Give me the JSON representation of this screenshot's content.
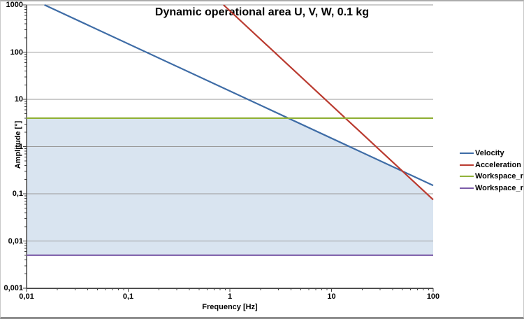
{
  "chart_data": {
    "type": "line",
    "title": "Dynamic operational area U, V, W, 0.1 kg",
    "xlabel": "Frequency [Hz]",
    "ylabel": "Amplitude [°]",
    "x_scale": "log",
    "y_scale": "log",
    "xlim": [
      0.01,
      100
    ],
    "ylim": [
      0.001,
      1000
    ],
    "grid": "horizontal-major",
    "grid_color": "#9A9A9A",
    "axis_color": "#3F3F3F",
    "legend_position": "right",
    "x_ticks": [
      {
        "v": 0.01,
        "label": "0,01"
      },
      {
        "v": 0.1,
        "label": "0,1"
      },
      {
        "v": 1,
        "label": "1"
      },
      {
        "v": 10,
        "label": "10"
      },
      {
        "v": 100,
        "label": "100"
      }
    ],
    "y_ticks": [
      {
        "v": 1000,
        "label": "1000"
      },
      {
        "v": 100,
        "label": "100"
      },
      {
        "v": 10,
        "label": "10"
      },
      {
        "v": 1,
        "label": "1"
      },
      {
        "v": 0.1,
        "label": "0,1"
      },
      {
        "v": 0.01,
        "label": "0,01"
      },
      {
        "v": 0.001,
        "label": "0,001"
      }
    ],
    "series": [
      {
        "name": "Velocity",
        "color": "#3E6CA6",
        "points": [
          [
            0.015,
            1000
          ],
          [
            100,
            0.15
          ]
        ]
      },
      {
        "name": "Acceleration",
        "color": "#BA3B30",
        "points": [
          [
            0.866,
            1000
          ],
          [
            100,
            0.075
          ]
        ]
      },
      {
        "name": "Workspace_max",
        "color": "#92B23A",
        "points": [
          [
            0.01,
            4
          ],
          [
            100,
            4
          ]
        ]
      },
      {
        "name": "Workspace_min",
        "color": "#7B5CA8",
        "points": [
          [
            0.01,
            0.005
          ],
          [
            100,
            0.005
          ]
        ]
      }
    ],
    "operational_area": {
      "fill": "#D9E4F0",
      "upper_boundary": [
        [
          0.01,
          4
        ],
        [
          3.75,
          4
        ],
        [
          50,
          0.3
        ],
        [
          100,
          0.075
        ]
      ],
      "lower_boundary": 0.005
    }
  }
}
